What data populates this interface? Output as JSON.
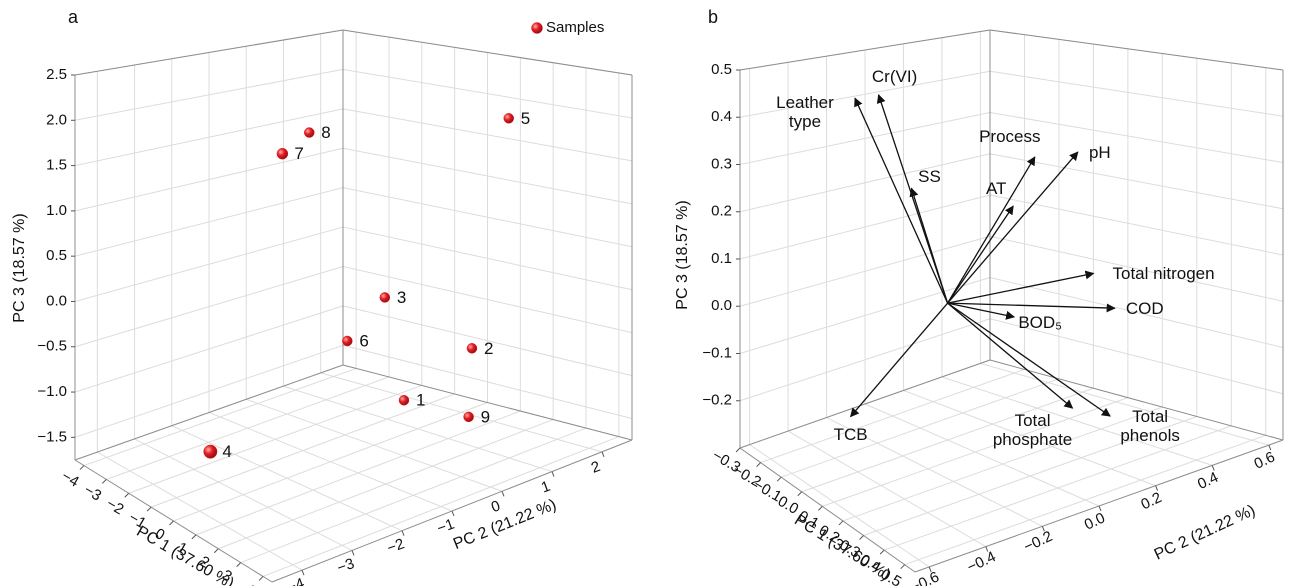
{
  "chart_data": [
    {
      "type": "scatter3d",
      "panel_label": "a",
      "xlabel": "PC 1 (37.60 %)",
      "ylabel": "PC 2 (21.22 %)",
      "zlabel": "PC 3 (18.57 %)",
      "xlim": [
        -4.4,
        4.4
      ],
      "ylim": [
        -4.6,
        2.6
      ],
      "zlim": [
        -1.75,
        2.5
      ],
      "xticks": [
        {
          "value": -4,
          "label": "−4"
        },
        {
          "value": -3,
          "label": "−3"
        },
        {
          "value": -2,
          "label": "−2"
        },
        {
          "value": -1,
          "label": "−1"
        },
        0,
        1,
        2,
        3,
        4
      ],
      "yticks": [
        {
          "value": -4,
          "label": "−4"
        },
        {
          "value": -3,
          "label": "−3"
        },
        {
          "value": -2,
          "label": "−2"
        },
        {
          "value": -1,
          "label": "−1"
        },
        0,
        1,
        2
      ],
      "zticks": [
        {
          "value": -1.5,
          "label": "−1.5"
        },
        {
          "value": -1.0,
          "label": "−1.0"
        },
        {
          "value": -0.5,
          "label": "−0.5"
        },
        {
          "value": 0,
          "label": "0.0"
        },
        0.5,
        {
          "value": 1,
          "label": "1.0"
        },
        1.5,
        {
          "value": 2,
          "label": "2.0"
        },
        2.5
      ],
      "grid": true,
      "legend": "upper right",
      "series": [
        {
          "name": "Samples",
          "color": "#e31e24",
          "labels": [
            "1",
            "2",
            "3",
            "4",
            "5",
            "6",
            "7",
            "8",
            "9"
          ],
          "x": [
            1.5,
            3.2,
            1.8,
            -1.5,
            3.3,
            1.1,
            -0.5,
            -0.3,
            2.6
          ],
          "y": [
            -0.3,
            0.1,
            -0.9,
            -2.9,
            0.8,
            -1.3,
            -1.8,
            -1.3,
            0.4
          ],
          "z": [
            -1.0,
            -0.3,
            0.3,
            -1.5,
            2.2,
            -0.2,
            1.8,
            2.0,
            -1.2
          ]
        }
      ]
    },
    {
      "type": "biplot3d",
      "panel_label": "b",
      "xlabel": "PC 1 (37.60 %)",
      "ylabel": "PC 2 (21.22 %)",
      "zlabel": "PC 3 (18.57 %)",
      "xlim": [
        -0.3,
        0.55
      ],
      "ylim": [
        -0.65,
        0.65
      ],
      "zlim": [
        -0.3,
        0.5
      ],
      "xticks": [
        {
          "value": -0.3,
          "label": "−0.3"
        },
        {
          "value": -0.2,
          "label": "−0.2"
        },
        {
          "value": -0.1,
          "label": "−0.1"
        },
        {
          "value": 0,
          "label": "0.0"
        },
        0.1,
        0.2,
        0.3,
        0.4,
        0.5
      ],
      "yticks": [
        {
          "value": -0.6,
          "label": "−0.6"
        },
        {
          "value": -0.4,
          "label": "−0.4"
        },
        {
          "value": -0.2,
          "label": "−0.2"
        },
        {
          "value": 0,
          "label": "0.0"
        },
        0.2,
        0.4,
        0.6
      ],
      "zticks": [
        {
          "value": -0.2,
          "label": "−0.2"
        },
        {
          "value": -0.1,
          "label": "−0.1"
        },
        {
          "value": 0,
          "label": "0.0"
        },
        0.1,
        0.2,
        0.3,
        0.4,
        0.5
      ],
      "grid": true,
      "color": "#111111",
      "vectors": {
        "names": [
          "Leather type",
          "Cr(VI)",
          "SS",
          "AT",
          "Process",
          "pH",
          "Total nitrogen",
          "COD",
          "BOD₅",
          "Total phosphate",
          "Total phenols",
          "TCB"
        ],
        "x": [
          -0.13,
          -0.12,
          -0.06,
          0.07,
          0.08,
          0.12,
          0.2,
          0.3,
          0.18,
          0.27,
          0.37,
          -0.05
        ],
        "y": [
          -0.27,
          -0.17,
          -0.09,
          0.2,
          0.28,
          0.41,
          0.37,
          0.33,
          0.07,
          0.2,
          0.23,
          -0.38
        ],
        "z": [
          0.45,
          0.45,
          0.25,
          0.2,
          0.3,
          0.3,
          0.05,
          0,
          0,
          -0.2,
          -0.2,
          -0.2
        ]
      }
    }
  ]
}
